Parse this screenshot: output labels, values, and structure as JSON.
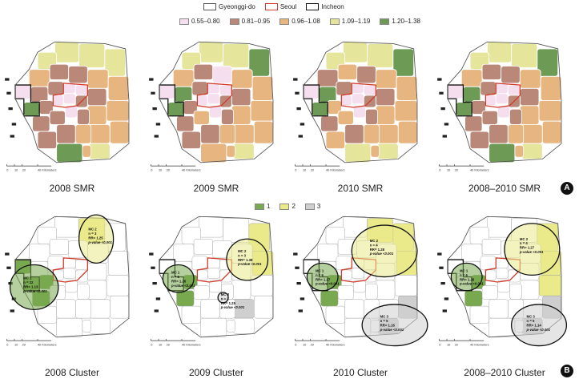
{
  "boundary_legend": [
    {
      "label": "Gyeonggi-do",
      "color": "#555555"
    },
    {
      "label": "Seoul",
      "color": "#d23a2a"
    },
    {
      "label": "Incheon",
      "color": "#111111"
    }
  ],
  "smr_legend": [
    {
      "label": "0.55–0.80",
      "color": "#f5dfee"
    },
    {
      "label": "0.81–0.95",
      "color": "#b98879"
    },
    {
      "label": "0.96–1.08",
      "color": "#e7b57f"
    },
    {
      "label": "1.09–1.19",
      "color": "#e6e59c"
    },
    {
      "label": "1.20–1.38",
      "color": "#6d9b55"
    }
  ],
  "cluster_legend": [
    {
      "label": "1",
      "color": "#79a94f"
    },
    {
      "label": "2",
      "color": "#eaea8a"
    },
    {
      "label": "3",
      "color": "#cfcfcf"
    }
  ],
  "scale_bar": {
    "ticks": [
      "0",
      "10",
      "20",
      "40 Kilometers"
    ]
  },
  "panels_a": [
    {
      "caption": "2008 SMR"
    },
    {
      "caption": "2009 SMR"
    },
    {
      "caption": "2010 SMR"
    },
    {
      "caption": "2008–2010 SMR"
    }
  ],
  "panels_b": [
    {
      "caption": "2008 Cluster",
      "clusters": [
        {
          "lines": [
            "MC 2",
            "n = 3",
            "RR= 1.25",
            "p-value <0.001"
          ]
        },
        {
          "lines": [
            "MC 1",
            "n = 22",
            "RR= 1.13",
            "p-value <0.001"
          ]
        }
      ]
    },
    {
      "caption": "2009 Cluster",
      "clusters": [
        {
          "lines": [
            "MC 2",
            "n = 3",
            "RR= 1.38",
            "p-value <0.001"
          ]
        },
        {
          "lines": [
            "MC 1",
            "n = 6",
            "RR= 1.26",
            "p-value <0.001"
          ]
        },
        {
          "lines": [
            "MC 3",
            "n = 2",
            "RR= 1.25",
            "p-value <0.001"
          ]
        }
      ]
    },
    {
      "caption": "2010 Cluster",
      "clusters": [
        {
          "lines": [
            "MC 2",
            "n = 4",
            "RR= 1.28",
            "p-value <0.001"
          ]
        },
        {
          "lines": [
            "MC 1",
            "n = 6",
            "RR= 1.27",
            "p-value <0.001"
          ]
        },
        {
          "lines": [
            "MC 3",
            "n = 5",
            "RR= 1.16",
            "p-value <0.001"
          ]
        }
      ]
    },
    {
      "caption": "2008–2010 Cluster",
      "clusters": [
        {
          "lines": [
            "MC 2",
            "n = 4",
            "RR= 1.27",
            "p-value <0.001"
          ]
        },
        {
          "lines": [
            "MC 1",
            "n = 6",
            "RR= 1.26",
            "p-value <0.001"
          ]
        },
        {
          "lines": [
            "MC 3",
            "n = 5",
            "RR= 1.14",
            "p-value <0.001"
          ]
        }
      ]
    }
  ],
  "panel_labels": {
    "a": "A",
    "b": "B"
  }
}
